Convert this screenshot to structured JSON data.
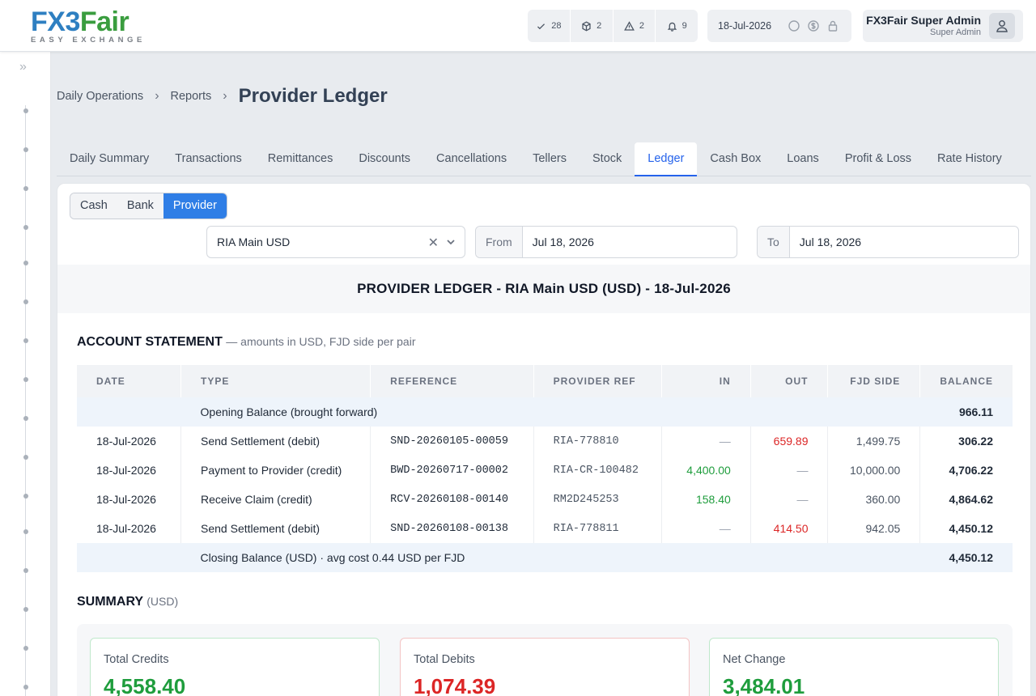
{
  "brand": {
    "name_fx": "FX",
    "name_three": "3",
    "name_fair": "Fair",
    "tagline": "EASY EXCHANGE"
  },
  "header": {
    "counters": [
      {
        "icon": "check-icon",
        "value": "28"
      },
      {
        "icon": "box-icon",
        "value": "2"
      },
      {
        "icon": "warning-icon",
        "value": "2"
      },
      {
        "icon": "bell-icon",
        "value": "9"
      }
    ],
    "date": "18-Jul-2026",
    "user_name": "FX3Fair Super Admin",
    "user_role": "Super Admin"
  },
  "breadcrumb": {
    "level1": "Daily Operations",
    "level2": "Reports",
    "current": "Provider Ledger"
  },
  "tabs": [
    "Daily Summary",
    "Transactions",
    "Remittances",
    "Discounts",
    "Cancellations",
    "Tellers",
    "Stock",
    "Ledger",
    "Cash Box",
    "Loans",
    "Profit & Loss",
    "Rate History"
  ],
  "active_tab": "Ledger",
  "ledger_type": {
    "options": [
      "Cash",
      "Bank",
      "Provider"
    ],
    "selected": "Provider"
  },
  "filters": {
    "provider": "RIA Main USD",
    "from_label": "From",
    "from_value": "Jul 18, 2026",
    "to_label": "To",
    "to_value": "Jul 18, 2026"
  },
  "report_title": "PROVIDER LEDGER - RIA Main USD (USD) - 18-Jul-2026",
  "statement": {
    "title": "ACCOUNT STATEMENT",
    "subtitle": "— amounts in USD, FJD side per pair",
    "columns": [
      "DATE",
      "TYPE",
      "REFERENCE",
      "PROVIDER REF",
      "IN",
      "OUT",
      "FJD SIDE",
      "BALANCE"
    ],
    "opening": {
      "label": "Opening Balance (brought forward)",
      "balance": "966.11"
    },
    "rows": [
      {
        "date": "18-Jul-2026",
        "type": "Send Settlement (debit)",
        "reference": "SND-20260105-00059",
        "provider_ref": "RIA-778810",
        "in": "—",
        "out": "659.89",
        "fjd": "1,499.75",
        "balance": "306.22"
      },
      {
        "date": "18-Jul-2026",
        "type": "Payment to Provider (credit)",
        "reference": "BWD-20260717-00002",
        "provider_ref": "RIA-CR-100482",
        "in": "4,400.00",
        "out": "—",
        "fjd": "10,000.00",
        "balance": "4,706.22"
      },
      {
        "date": "18-Jul-2026",
        "type": "Receive Claim (credit)",
        "reference": "RCV-20260108-00140",
        "provider_ref": "RM2D245253",
        "in": "158.40",
        "out": "—",
        "fjd": "360.00",
        "balance": "4,864.62"
      },
      {
        "date": "18-Jul-2026",
        "type": "Send Settlement (debit)",
        "reference": "SND-20260108-00138",
        "provider_ref": "RIA-778811",
        "in": "—",
        "out": "414.50",
        "fjd": "942.05",
        "balance": "4,450.12"
      }
    ],
    "closing": {
      "label": "Closing Balance (USD) · avg cost 0.44 USD per FJD",
      "balance": "4,450.12"
    }
  },
  "summary": {
    "title": "SUMMARY",
    "unit": "(USD)",
    "cards": [
      {
        "label": "Total Credits",
        "value": "4,558.40",
        "color": "#1f9d3d"
      },
      {
        "label": "Total Debits",
        "value": "1,074.39",
        "color": "#dc2626"
      },
      {
        "label": "Net Change",
        "value": "3,484.01",
        "color": "#1f9d3d"
      }
    ]
  }
}
